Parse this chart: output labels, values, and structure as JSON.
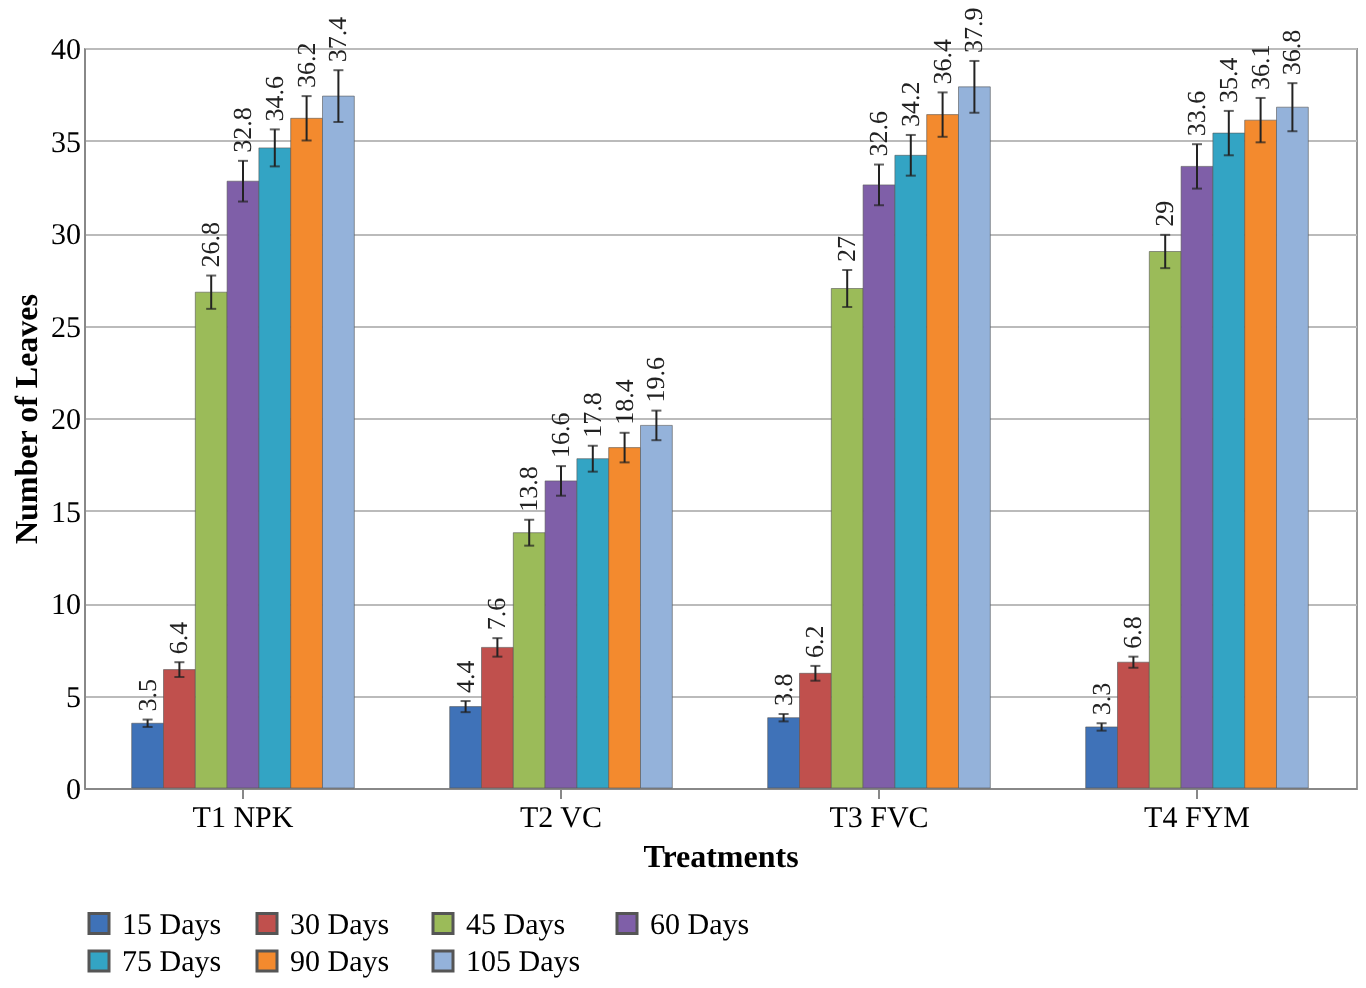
{
  "chart_data": {
    "type": "bar",
    "xlabel": "Treatments",
    "ylabel": "Number of  Leaves",
    "categories": [
      "T1 NPK",
      "T2 VC",
      "T3 FVC",
      "T4 FYM"
    ],
    "series": [
      {
        "name": "15 Days",
        "color": "#3f72b8",
        "values": [
          3.5,
          4.4,
          3.8,
          3.3
        ],
        "errors": [
          0.2,
          0.3,
          0.2,
          0.2
        ]
      },
      {
        "name": "30 Days",
        "color": "#c0504d",
        "values": [
          6.4,
          7.6,
          6.2,
          6.8
        ],
        "errors": [
          0.4,
          0.5,
          0.4,
          0.3
        ]
      },
      {
        "name": "45 Days",
        "color": "#9bbb59",
        "values": [
          26.8,
          13.8,
          27,
          29
        ],
        "errors": [
          0.9,
          0.7,
          1.0,
          0.9
        ]
      },
      {
        "name": "60 Days",
        "color": "#7f5fa8",
        "values": [
          32.8,
          16.6,
          32.6,
          33.6
        ],
        "errors": [
          1.1,
          0.8,
          1.1,
          1.2
        ]
      },
      {
        "name": "75 Days",
        "color": "#33a4c4",
        "values": [
          34.6,
          17.8,
          34.2,
          35.4
        ],
        "errors": [
          1.0,
          0.7,
          1.1,
          1.2
        ]
      },
      {
        "name": "90  Days",
        "color": "#f38a2e",
        "values": [
          36.2,
          18.4,
          36.4,
          36.1
        ],
        "errors": [
          1.2,
          0.8,
          1.2,
          1.2
        ]
      },
      {
        "name": "105 Days",
        "color": "#94b2da",
        "values": [
          37.4,
          19.6,
          37.9,
          36.8
        ],
        "errors": [
          1.4,
          0.8,
          1.4,
          1.3
        ]
      }
    ],
    "data_labels": true,
    "ylim": [
      0,
      40
    ],
    "yticks": [
      0,
      5,
      10,
      15,
      20,
      25,
      30,
      35,
      40
    ],
    "grid": "y",
    "legend": "bottom"
  }
}
